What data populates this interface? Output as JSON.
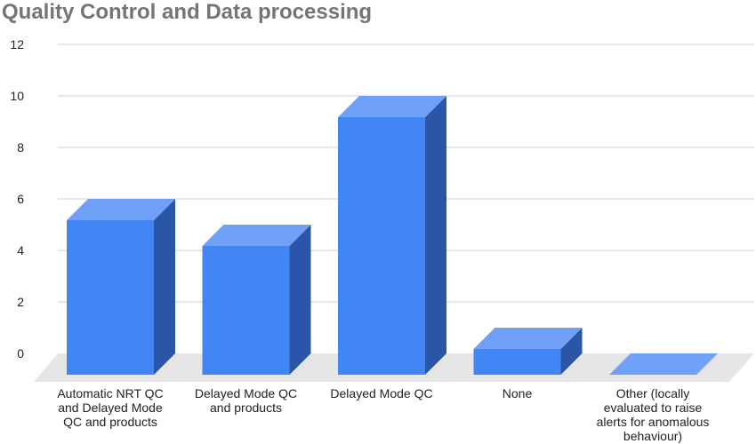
{
  "chart_data": {
    "type": "bar",
    "title": "Quality Control and Data processing",
    "xlabel": "",
    "ylabel": "",
    "ylim": [
      0,
      12
    ],
    "yticks": [
      0,
      2,
      4,
      6,
      8,
      10,
      12
    ],
    "categories": [
      "Automatic NRT QC and Delayed Mode QC and products",
      "Delayed Mode QC and products",
      "Delayed Mode QC",
      "None",
      "Other (locally evaluated to raise alerts for anomalous behaviour)"
    ],
    "category_lines": [
      [
        "Automatic NRT QC",
        "and Delayed Mode",
        "QC and products"
      ],
      [
        "Delayed Mode QC",
        "and products"
      ],
      [
        "Delayed Mode QC"
      ],
      [
        "None"
      ],
      [
        "Other (locally",
        "evaluated to raise",
        "alerts for anomalous",
        "behaviour)"
      ]
    ],
    "values": [
      6,
      5,
      10,
      1,
      0
    ],
    "grid": true,
    "legend": "none",
    "style": "3d",
    "colors": {
      "bar_front": "#4285f4",
      "bar_top": "#6ea1f7",
      "bar_side": "#2b56a7",
      "floor": "#e6e6e6",
      "grid": "#d0d0d0"
    }
  }
}
